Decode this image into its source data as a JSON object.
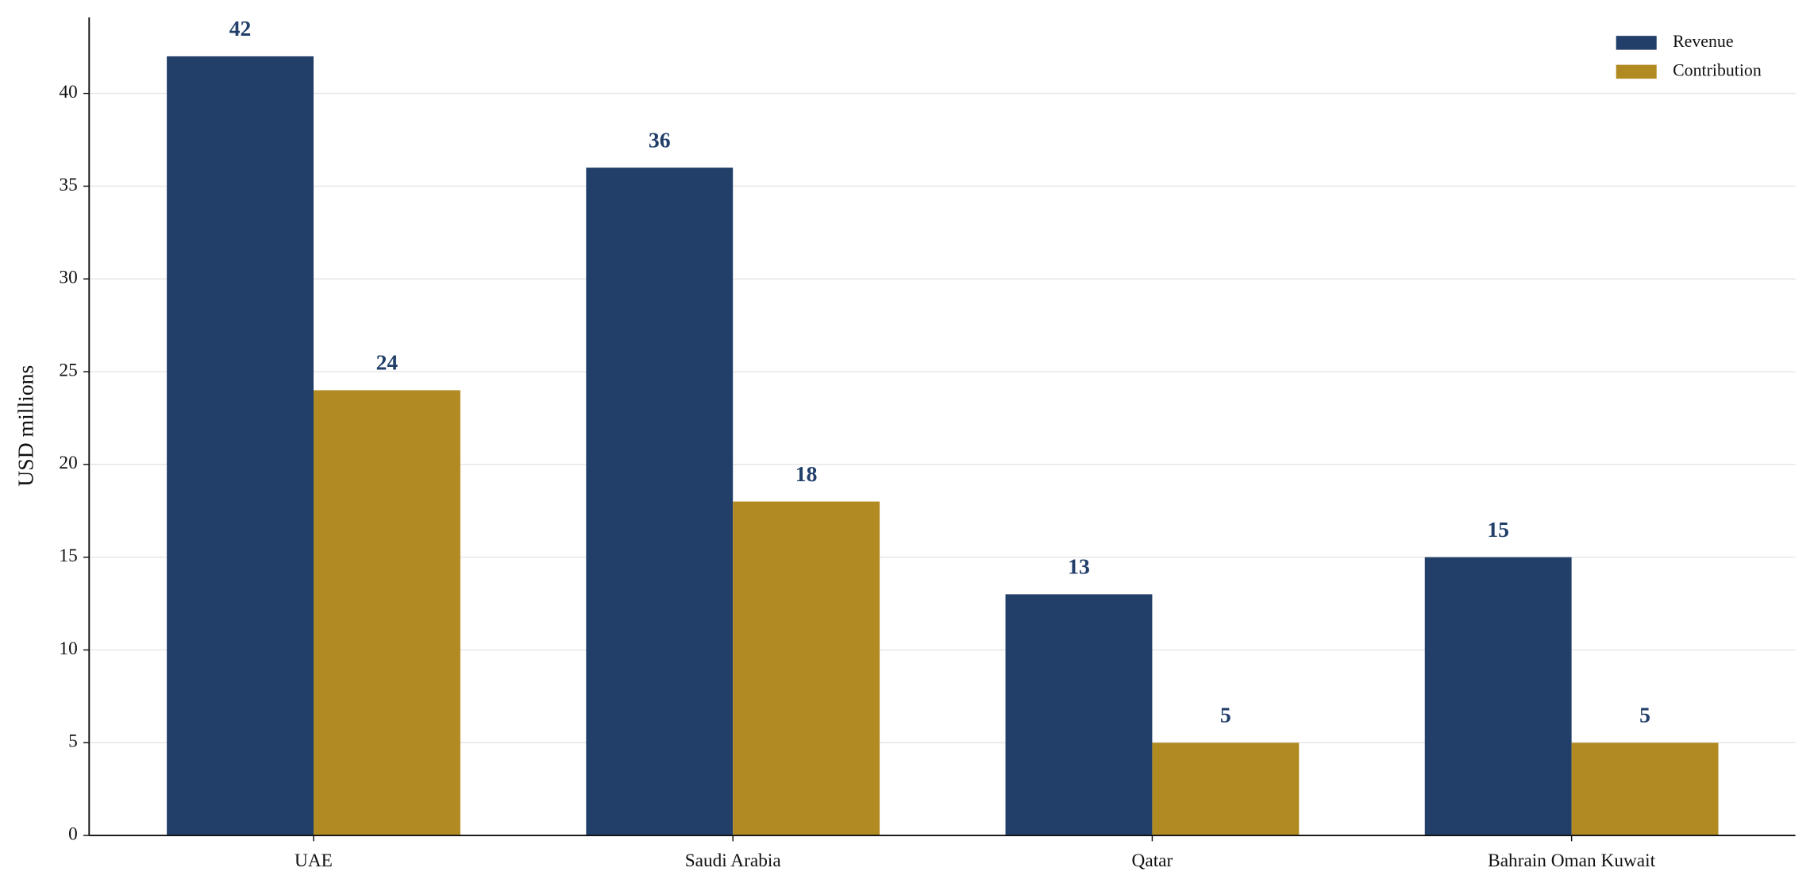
{
  "chart_data": {
    "type": "bar",
    "y_label": "USD millions",
    "categories": [
      "UAE",
      "Saudi Arabia",
      "Qatar",
      "Bahrain Oman Kuwait"
    ],
    "series": [
      {
        "name": "Revenue",
        "color": "#213f69",
        "values": [
          42,
          36,
          13,
          15
        ]
      },
      {
        "name": "Contribution",
        "color": "#b28a22",
        "values": [
          24,
          18,
          5,
          5
        ]
      }
    ],
    "ylim": [
      0,
      44.1
    ],
    "yticks": [
      0,
      5,
      10,
      15,
      20,
      25,
      30,
      35,
      40
    ],
    "grid": true,
    "legend": "upper right"
  }
}
